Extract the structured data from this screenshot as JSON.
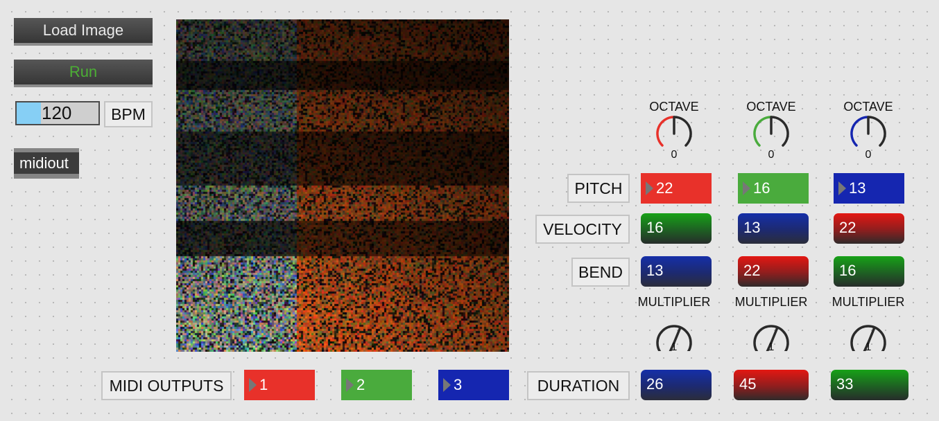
{
  "controls": {
    "load_image_label": "Load Image",
    "run_label": "Run",
    "bpm_value": "120",
    "bpm_label": "BPM",
    "bpm_fill_fraction": 0.3,
    "midiout_label": "midiout"
  },
  "channels": [
    {
      "color": "#e8312a",
      "octave_label": "OCTAVE",
      "octave_value": "0",
      "pitch": "22",
      "velocity": "16",
      "bend": "13",
      "multiplier_label": "MULTIPLIER",
      "multiplier_value": "1",
      "duration": "26"
    },
    {
      "color": "#4aab3d",
      "octave_label": "OCTAVE",
      "octave_value": "0",
      "pitch": "16",
      "velocity": "13",
      "bend": "22",
      "multiplier_label": "MULTIPLIER",
      "multiplier_value": "1",
      "duration": "45"
    },
    {
      "color": "#1526b0",
      "octave_label": "OCTAVE",
      "octave_value": "0",
      "pitch": "13",
      "velocity": "22",
      "bend": "16",
      "multiplier_label": "MULTIPLIER",
      "multiplier_value": "1",
      "duration": "33"
    }
  ],
  "row_labels": {
    "pitch": "PITCH",
    "velocity": "VELOCITY",
    "bend": "BEND",
    "duration": "DURATION"
  },
  "midi_outputs": {
    "label": "MIDI OUTPUTS",
    "values": [
      "1",
      "2",
      "3"
    ]
  },
  "colors": {
    "red": "#e8312a",
    "green": "#4aab3d",
    "blue": "#1526b0",
    "run_text": "#4cae35",
    "slider_fill": "#86cff5"
  }
}
